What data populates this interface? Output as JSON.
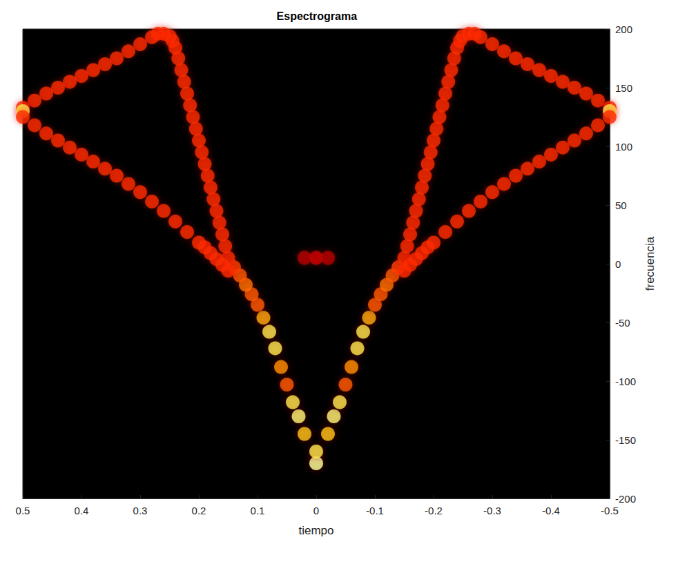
{
  "chart_data": {
    "type": "heatmap",
    "title": "Espectrograma",
    "x_label": "tiempo",
    "y_label": "frecuencia",
    "xlim": [
      -0.5,
      0.5
    ],
    "ylim": [
      -200,
      200
    ],
    "xticks": [
      0.5,
      0.4,
      0.3,
      0.2,
      0.1,
      0,
      -0.1,
      -0.2,
      -0.3,
      -0.4,
      -0.5
    ],
    "yticks": [
      -200,
      -150,
      -100,
      -50,
      0,
      50,
      100,
      150,
      200
    ],
    "value_range": [
      0,
      1
    ],
    "cells": [
      [
        0,
        -170,
        1
      ],
      [
        0,
        -160,
        0.9
      ],
      [
        0,
        5,
        0.35
      ],
      [
        0.02,
        5,
        0.3
      ],
      [
        -0.02,
        5,
        0.3
      ],
      [
        0.02,
        -145,
        0.8
      ],
      [
        0.03,
        -130,
        0.95
      ],
      [
        0.04,
        -118,
        0.9
      ],
      [
        0.05,
        -103,
        0.6
      ],
      [
        0.06,
        -88,
        0.7
      ],
      [
        0.07,
        -72,
        0.9
      ],
      [
        0.08,
        -58,
        0.9
      ],
      [
        0.09,
        -46,
        0.75
      ],
      [
        0.1,
        -35,
        0.6
      ],
      [
        0.11,
        -26,
        0.6
      ],
      [
        0.12,
        -18,
        0.65
      ],
      [
        0.13,
        -10,
        0.6
      ],
      [
        0.14,
        -3,
        0.55
      ],
      [
        0.15,
        5,
        0.5
      ],
      [
        0.155,
        15,
        0.5
      ],
      [
        0.16,
        25,
        0.5
      ],
      [
        0.165,
        35,
        0.5
      ],
      [
        0.17,
        45,
        0.5
      ],
      [
        0.175,
        55,
        0.5
      ],
      [
        0.18,
        65,
        0.5
      ],
      [
        0.185,
        75,
        0.5
      ],
      [
        0.19,
        85,
        0.5
      ],
      [
        0.195,
        95,
        0.5
      ],
      [
        0.2,
        105,
        0.5
      ],
      [
        0.205,
        115,
        0.5
      ],
      [
        0.21,
        125,
        0.5
      ],
      [
        0.215,
        135,
        0.5
      ],
      [
        0.22,
        145,
        0.5
      ],
      [
        0.225,
        155,
        0.5
      ],
      [
        0.23,
        165,
        0.5
      ],
      [
        0.235,
        175,
        0.5
      ],
      [
        0.24,
        184,
        0.5
      ],
      [
        0.245,
        190,
        0.5
      ],
      [
        0.25,
        194,
        0.5
      ],
      [
        0.26,
        196,
        0.5
      ],
      [
        0.27,
        196,
        0.5
      ],
      [
        0.28,
        193,
        0.5
      ],
      [
        0.3,
        187,
        0.5
      ],
      [
        0.32,
        181,
        0.5
      ],
      [
        0.34,
        175,
        0.5
      ],
      [
        0.36,
        170,
        0.5
      ],
      [
        0.38,
        165,
        0.5
      ],
      [
        0.4,
        160,
        0.5
      ],
      [
        0.42,
        155,
        0.5
      ],
      [
        0.44,
        150,
        0.5
      ],
      [
        0.46,
        145,
        0.5
      ],
      [
        0.48,
        139,
        0.5
      ],
      [
        0.5,
        133,
        0.5
      ],
      [
        0.5,
        130,
        0.9
      ],
      [
        0.15,
        -6,
        0.5
      ],
      [
        0.16,
        -1,
        0.5
      ],
      [
        0.17,
        4,
        0.5
      ],
      [
        0.18,
        9,
        0.5
      ],
      [
        0.19,
        14,
        0.5
      ],
      [
        0.2,
        18,
        0.5
      ],
      [
        0.22,
        27,
        0.5
      ],
      [
        0.24,
        36,
        0.5
      ],
      [
        0.26,
        45,
        0.5
      ],
      [
        0.28,
        53,
        0.5
      ],
      [
        0.3,
        61,
        0.5
      ],
      [
        0.32,
        68,
        0.5
      ],
      [
        0.34,
        75,
        0.5
      ],
      [
        0.36,
        81,
        0.5
      ],
      [
        0.38,
        87,
        0.5
      ],
      [
        0.4,
        93,
        0.5
      ],
      [
        0.42,
        99,
        0.5
      ],
      [
        0.44,
        105,
        0.5
      ],
      [
        0.46,
        111,
        0.5
      ],
      [
        0.48,
        118,
        0.5
      ],
      [
        0.5,
        125,
        0.5
      ],
      [
        -0.02,
        -145,
        0.8
      ],
      [
        -0.03,
        -130,
        0.95
      ],
      [
        -0.04,
        -118,
        0.9
      ],
      [
        -0.05,
        -103,
        0.6
      ],
      [
        -0.06,
        -88,
        0.7
      ],
      [
        -0.07,
        -72,
        0.9
      ],
      [
        -0.08,
        -58,
        0.9
      ],
      [
        -0.09,
        -46,
        0.75
      ],
      [
        -0.1,
        -35,
        0.6
      ],
      [
        -0.11,
        -26,
        0.6
      ],
      [
        -0.12,
        -18,
        0.65
      ],
      [
        -0.13,
        -10,
        0.6
      ],
      [
        -0.14,
        -3,
        0.55
      ],
      [
        -0.15,
        5,
        0.5
      ],
      [
        -0.155,
        15,
        0.5
      ],
      [
        -0.16,
        25,
        0.5
      ],
      [
        -0.165,
        35,
        0.5
      ],
      [
        -0.17,
        45,
        0.5
      ],
      [
        -0.175,
        55,
        0.5
      ],
      [
        -0.18,
        65,
        0.5
      ],
      [
        -0.185,
        75,
        0.5
      ],
      [
        -0.19,
        85,
        0.5
      ],
      [
        -0.195,
        95,
        0.5
      ],
      [
        -0.2,
        105,
        0.5
      ],
      [
        -0.205,
        115,
        0.5
      ],
      [
        -0.21,
        125,
        0.5
      ],
      [
        -0.215,
        135,
        0.5
      ],
      [
        -0.22,
        145,
        0.5
      ],
      [
        -0.225,
        155,
        0.5
      ],
      [
        -0.23,
        165,
        0.5
      ],
      [
        -0.235,
        175,
        0.5
      ],
      [
        -0.24,
        184,
        0.5
      ],
      [
        -0.245,
        190,
        0.5
      ],
      [
        -0.25,
        194,
        0.5
      ],
      [
        -0.26,
        196,
        0.5
      ],
      [
        -0.27,
        196,
        0.5
      ],
      [
        -0.28,
        193,
        0.5
      ],
      [
        -0.3,
        187,
        0.5
      ],
      [
        -0.32,
        181,
        0.5
      ],
      [
        -0.34,
        175,
        0.5
      ],
      [
        -0.36,
        170,
        0.5
      ],
      [
        -0.38,
        165,
        0.5
      ],
      [
        -0.4,
        160,
        0.5
      ],
      [
        -0.42,
        155,
        0.5
      ],
      [
        -0.44,
        150,
        0.5
      ],
      [
        -0.46,
        145,
        0.5
      ],
      [
        -0.48,
        139,
        0.5
      ],
      [
        -0.5,
        133,
        0.5
      ],
      [
        -0.5,
        130,
        0.9
      ],
      [
        -0.15,
        -6,
        0.5
      ],
      [
        -0.16,
        -1,
        0.5
      ],
      [
        -0.17,
        4,
        0.5
      ],
      [
        -0.18,
        9,
        0.5
      ],
      [
        -0.19,
        14,
        0.5
      ],
      [
        -0.2,
        18,
        0.5
      ],
      [
        -0.22,
        27,
        0.5
      ],
      [
        -0.24,
        36,
        0.5
      ],
      [
        -0.26,
        45,
        0.5
      ],
      [
        -0.28,
        53,
        0.5
      ],
      [
        -0.3,
        61,
        0.5
      ],
      [
        -0.32,
        68,
        0.5
      ],
      [
        -0.34,
        75,
        0.5
      ],
      [
        -0.36,
        81,
        0.5
      ],
      [
        -0.38,
        87,
        0.5
      ],
      [
        -0.4,
        93,
        0.5
      ],
      [
        -0.42,
        99,
        0.5
      ],
      [
        -0.44,
        105,
        0.5
      ],
      [
        -0.46,
        111,
        0.5
      ],
      [
        -0.48,
        118,
        0.5
      ],
      [
        -0.5,
        125,
        0.5
      ]
    ]
  }
}
